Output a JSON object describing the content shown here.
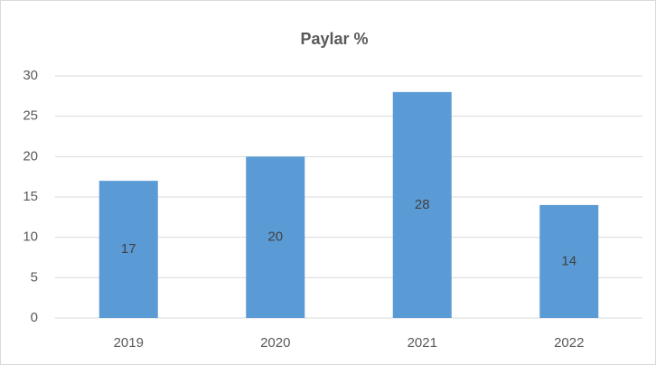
{
  "chart_data": {
    "type": "bar",
    "title": "Paylar %",
    "categories": [
      "2019",
      "2020",
      "2021",
      "2022"
    ],
    "values": [
      17,
      20,
      28,
      14
    ],
    "color": "#5b9bd5",
    "ylim": [
      0,
      30
    ],
    "yticks": [
      0,
      5,
      10,
      15,
      20,
      25,
      30
    ],
    "grid": true,
    "data_labels": true
  }
}
